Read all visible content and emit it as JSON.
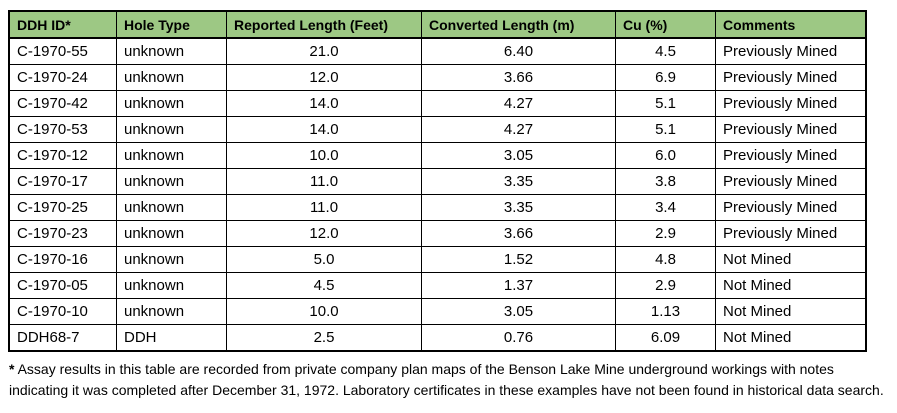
{
  "colors": {
    "header_bg": "#9DC884",
    "border": "#000000",
    "text": "#000000",
    "page_bg": "#FFFFFF"
  },
  "table": {
    "columns": [
      {
        "label": "DDH ID*"
      },
      {
        "label": "Hole Type"
      },
      {
        "label": "Reported Length (Feet)"
      },
      {
        "label": "Converted Length (m)"
      },
      {
        "label": "Cu (%)"
      },
      {
        "label": "Comments"
      }
    ],
    "rows": [
      [
        "C-1970-55",
        "unknown",
        "21.0",
        "6.40",
        "4.5",
        "Previously Mined"
      ],
      [
        "C-1970-24",
        "unknown",
        "12.0",
        "3.66",
        "6.9",
        "Previously Mined"
      ],
      [
        "C-1970-42",
        "unknown",
        "14.0",
        "4.27",
        "5.1",
        "Previously Mined"
      ],
      [
        "C-1970-53",
        "unknown",
        "14.0",
        "4.27",
        "5.1",
        "Previously Mined"
      ],
      [
        "C-1970-12",
        "unknown",
        "10.0",
        "3.05",
        "6.0",
        "Previously Mined"
      ],
      [
        "C-1970-17",
        "unknown",
        "11.0",
        "3.35",
        "3.8",
        "Previously Mined"
      ],
      [
        "C-1970-25",
        "unknown",
        "11.0",
        "3.35",
        "3.4",
        "Previously Mined"
      ],
      [
        "C-1970-23",
        "unknown",
        "12.0",
        "3.66",
        "2.9",
        "Previously Mined"
      ],
      [
        "C-1970-16",
        "unknown",
        "5.0",
        "1.52",
        "4.8",
        "Not Mined"
      ],
      [
        "C-1970-05",
        "unknown",
        "4.5",
        "1.37",
        "2.9",
        "Not Mined"
      ],
      [
        "C-1970-10",
        "unknown",
        "10.0",
        "3.05",
        "1.13",
        "Not Mined"
      ],
      [
        "DDH68-7",
        "DDH",
        "2.5",
        "0.76",
        "6.09",
        "Not Mined"
      ]
    ]
  },
  "footnote": {
    "marker": "*",
    "text": "Assay results in this table are recorded from private company plan maps of the Benson Lake Mine underground workings with notes indicating it was completed after December 31, 1972. Laboratory certificates in these examples have not been found in historical data search."
  }
}
